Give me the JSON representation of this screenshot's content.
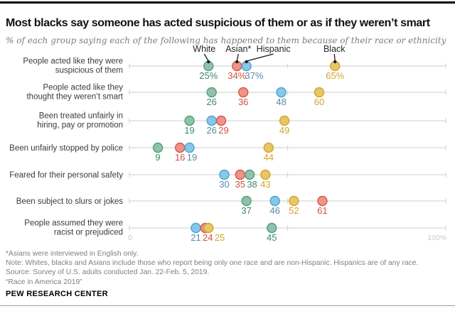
{
  "header": {
    "title": "Most blacks say someone has acted suspicious of them or as if they weren’t smart",
    "subtitle": "% of each group saying each of the following has happened to them because of their race or ethnicity"
  },
  "chart_data": {
    "type": "scatter",
    "variant": "dot-plot",
    "xlim": [
      0,
      100
    ],
    "x_axis_labels": {
      "min": "0",
      "max": "100%"
    },
    "mid_tick": 50,
    "grid": "per-row horizontal axis lines",
    "legend_position": "callouts above first row",
    "first_row_value_suffix": "%",
    "axis_color": "#d6d6d6",
    "axis_label_color": "#c9c9c9",
    "categories": [
      [
        "People acted like they were",
        "suspicious of them"
      ],
      [
        "People acted like they",
        "thought they weren’t smart"
      ],
      [
        "Been treated unfairly in",
        "hiring, pay or promotion"
      ],
      [
        "Been unfairly stopped by police"
      ],
      [
        "Feared for their personal safety"
      ],
      [
        "Been subject to slurs or jokes"
      ],
      [
        "People assumed they were",
        "racist or prejudiced"
      ]
    ],
    "series": [
      {
        "name": "White",
        "dot_fill": "#8ec2a9",
        "dot_stroke": "#569e81",
        "label_color": "#3c8a68",
        "values": [
          25,
          26,
          19,
          9,
          38,
          37,
          45
        ]
      },
      {
        "name": "Asian*",
        "dot_fill": "#ec9489",
        "dot_stroke": "#d65847",
        "label_color": "#d0503f",
        "values": [
          34,
          36,
          29,
          16,
          35,
          61,
          24
        ]
      },
      {
        "name": "Hispanic",
        "dot_fill": "#87c7e8",
        "dot_stroke": "#4ba3d0",
        "label_color": "#5e86a5",
        "values": [
          37,
          48,
          26,
          19,
          30,
          46,
          21
        ]
      },
      {
        "name": "Black",
        "dot_fill": "#e8c565",
        "dot_stroke": "#d2a62f",
        "label_color": "#d3a429",
        "values": [
          65,
          60,
          49,
          44,
          43,
          52,
          25
        ]
      }
    ]
  },
  "footer": {
    "notes": [
      "*Asians were interviewed in English only.",
      "Note: Whites, blacks and Asians include those who report being only one race and are non-Hispanic. Hispanics are of any race.",
      "Source: Survey of U.S. adults conducted Jan. 22-Feb. 5, 2019.",
      "“Race in America 2019”"
    ],
    "brand": "PEW RESEARCH CENTER"
  }
}
